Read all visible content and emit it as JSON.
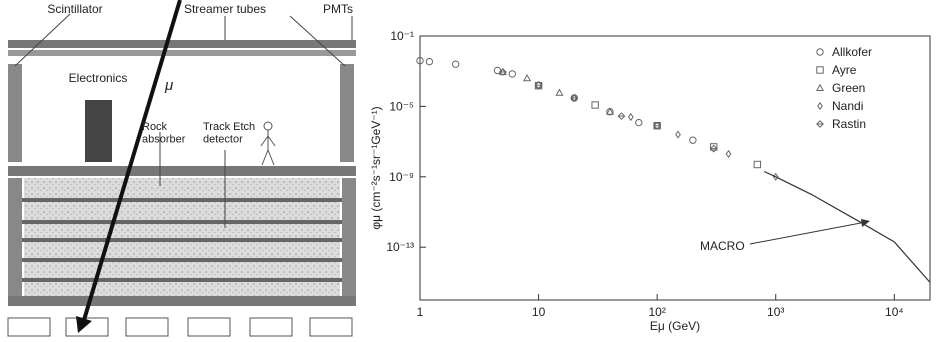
{
  "diagram": {
    "labels": {
      "scintillator": "Scintillator",
      "streamer": "Streamer tubes",
      "pmts": "PMTs",
      "electronics": "Electronics",
      "muon": "μ",
      "rock": "Rock\nabsorber",
      "track": "Track Etch\ndetector"
    }
  },
  "chart_data": {
    "type": "scatter",
    "x_label": "Eμ (GeV)",
    "y_label": "φμ (cm⁻²s⁻¹sr⁻¹GeV⁻¹)",
    "log_x": true,
    "log_y": true,
    "xlim": [
      1,
      20000
    ],
    "ylim": [
      1e-16,
      0.1
    ],
    "xticks": [
      1,
      10,
      {
        "value": 100,
        "label": "10²"
      },
      {
        "value": 1000,
        "label": "10³"
      },
      {
        "value": 10000,
        "label": "10⁴"
      }
    ],
    "yticks": [
      {
        "value": 0.1,
        "label": "10⁻¹"
      },
      {
        "value": 1e-05,
        "label": "10⁻⁵"
      },
      {
        "value": 1e-09,
        "label": "10⁻⁹"
      },
      {
        "value": 1e-13,
        "label": "10⁻¹³"
      }
    ],
    "legend": "top-right",
    "series": [
      {
        "name": "Allkofer",
        "marker": "circle",
        "color": "#666666",
        "x": [
          1,
          1.2,
          2,
          4.5,
          6,
          10,
          20,
          40,
          70,
          100,
          200
        ],
        "values": [
          0.004,
          0.0035,
          0.0025,
          0.0011,
          0.0007,
          0.00016,
          3e-05,
          5e-06,
          1.2e-06,
          8e-07,
          1.2e-07
        ]
      },
      {
        "name": "Ayre",
        "marker": "square",
        "color": "#666666",
        "x": [
          10,
          30,
          100,
          300,
          700
        ],
        "values": [
          0.00015,
          1.2e-05,
          8e-07,
          5e-08,
          5e-09
        ]
      },
      {
        "name": "Green",
        "marker": "triangle",
        "color": "#666666",
        "x": [
          5,
          8,
          15,
          40
        ],
        "values": [
          0.0009,
          0.0004,
          6e-05,
          5e-06
        ]
      },
      {
        "name": "Nandi",
        "marker": "diamond",
        "color": "#666666",
        "x": [
          20,
          60,
          150,
          400,
          1000
        ],
        "values": [
          3e-05,
          2.5e-06,
          2.5e-07,
          2e-08,
          1e-09
        ]
      },
      {
        "name": "Rastin",
        "marker": "cross-diamond",
        "color": "#666666",
        "x": [
          5,
          10,
          20,
          50,
          100,
          300
        ],
        "values": [
          0.0009,
          0.00016,
          3e-05,
          2.8e-06,
          8e-07,
          4e-08
        ]
      }
    ],
    "fit": {
      "label": "MACRO",
      "color": "#333333",
      "x": [
        800,
        1000,
        2000,
        5000,
        10000,
        20000
      ],
      "values": [
        2e-09,
        1e-09,
        1e-10,
        3e-12,
        2e-13,
        1e-15
      ]
    }
  }
}
